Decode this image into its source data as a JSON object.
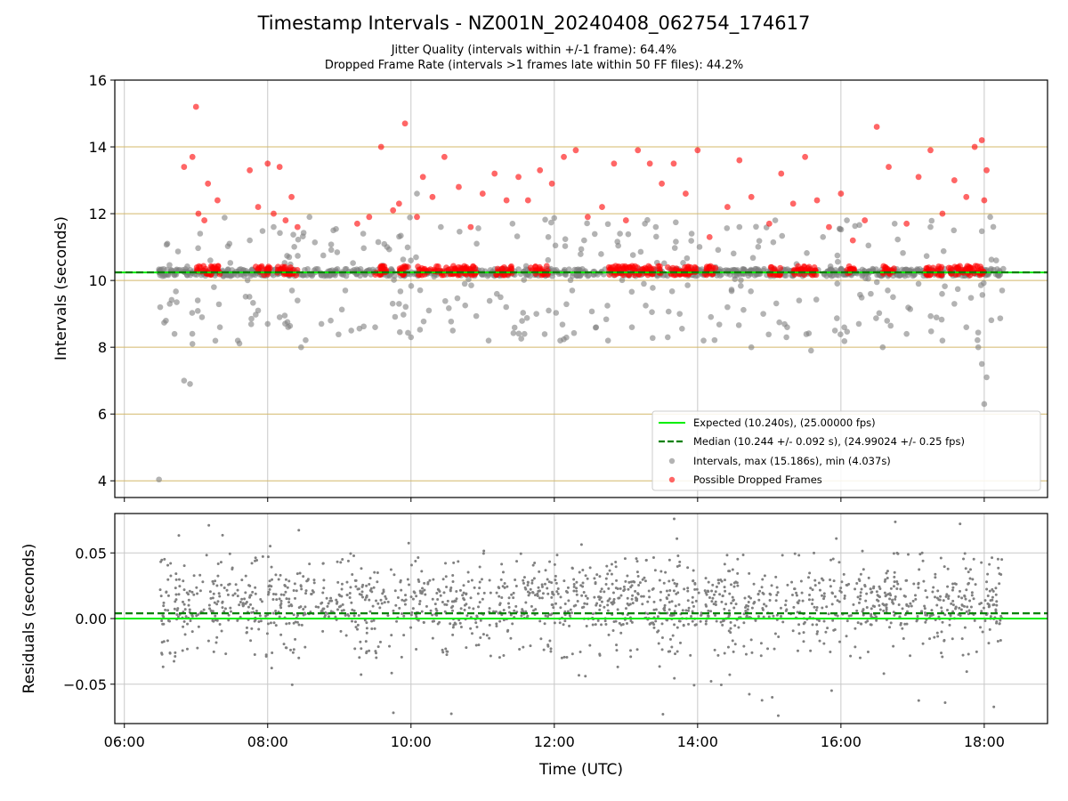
{
  "title": "Timestamp Intervals - NZ001N_20240408_062754_174617",
  "subtitle_1": "Jitter Quality (intervals within +/-1 frame): 64.4%",
  "subtitle_2": "Dropped Frame Rate (intervals >1 frames late within 50 FF files): 44.2%",
  "colors": {
    "expected": "#00ee00",
    "median": "#008000",
    "intervals": "#808080",
    "dropped": "#ff0000",
    "hgrid_top": "#d4b86a",
    "grid": "#c8c8c8"
  },
  "chart_data": [
    {
      "type": "scatter",
      "name": "intervals",
      "ylabel": "Intervals (seconds)",
      "ylim": [
        3.5,
        16
      ],
      "yticks": [
        4,
        6,
        8,
        10,
        12,
        14,
        16
      ],
      "xlim": [
        "05:52",
        "18:53"
      ],
      "xticks": [
        "06:00",
        "08:00",
        "10:00",
        "12:00",
        "14:00",
        "16:00",
        "18:00"
      ],
      "grid": true,
      "legend_position": "lower-right",
      "expected_value": 10.24,
      "median_value": 10.244,
      "legend": [
        "Expected (10.240s), (25.00000 fps)",
        "Median (10.244 +/- 0.092 s), (24.99024 +/- 0.25 fps)",
        "Intervals, max (15.186s), min (4.037s)",
        "Possible Dropped Frames"
      ],
      "series": [
        {
          "name": "Intervals, max (15.186s), min (4.037s)",
          "points": [
            [
              "06:29",
              4.04
            ],
            [
              "06:30",
              9.2
            ],
            [
              "06:36",
              11.1
            ],
            [
              "06:38",
              9.3
            ],
            [
              "06:42",
              8.4
            ],
            [
              "06:50",
              7.0
            ],
            [
              "06:55",
              6.9
            ],
            [
              "06:57",
              8.1
            ],
            [
              "07:05",
              8.9
            ],
            [
              "07:12",
              10.6
            ],
            [
              "07:15",
              9.8
            ],
            [
              "07:20",
              8.6
            ],
            [
              "07:28",
              11.1
            ],
            [
              "07:35",
              8.2
            ],
            [
              "07:45",
              11.2
            ],
            [
              "07:52",
              9.1
            ],
            [
              "08:00",
              8.7
            ],
            [
              "08:05",
              11.6
            ],
            [
              "08:10",
              8.9
            ],
            [
              "08:18",
              10.7
            ],
            [
              "08:25",
              9.4
            ],
            [
              "08:28",
              8.0
            ],
            [
              "08:35",
              11.9
            ],
            [
              "08:45",
              8.7
            ],
            [
              "08:55",
              11.5
            ],
            [
              "09:05",
              9.7
            ],
            [
              "09:10",
              8.5
            ],
            [
              "09:20",
              11.4
            ],
            [
              "09:30",
              8.6
            ],
            [
              "09:40",
              11.0
            ],
            [
              "09:50",
              9.3
            ],
            [
              "10:00",
              8.3
            ],
            [
              "10:05",
              12.6
            ],
            [
              "10:15",
              9.1
            ],
            [
              "10:25",
              11.6
            ],
            [
              "10:35",
              8.5
            ],
            [
              "10:45",
              9.9
            ],
            [
              "10:55",
              11.1
            ],
            [
              "11:05",
              8.2
            ],
            [
              "11:15",
              9.5
            ],
            [
              "11:25",
              11.7
            ],
            [
              "11:35",
              8.4
            ],
            [
              "11:45",
              9.0
            ],
            [
              "11:55",
              11.3
            ],
            [
              "12:05",
              8.2
            ],
            [
              "12:15",
              9.7
            ],
            [
              "12:25",
              11.2
            ],
            [
              "12:35",
              8.6
            ],
            [
              "12:45",
              8.2
            ],
            [
              "12:55",
              11.4
            ],
            [
              "13:05",
              8.6
            ],
            [
              "13:15",
              9.9
            ],
            [
              "13:25",
              11.6
            ],
            [
              "13:35",
              8.3
            ],
            [
              "13:45",
              9.0
            ],
            [
              "13:55",
              11.4
            ],
            [
              "14:05",
              8.2
            ],
            [
              "14:15",
              10.4
            ],
            [
              "14:25",
              9.2
            ],
            [
              "14:35",
              11.6
            ],
            [
              "14:45",
              8.0
            ],
            [
              "14:55",
              9.0
            ],
            [
              "15:05",
              11.8
            ],
            [
              "15:15",
              8.6
            ],
            [
              "15:25",
              9.4
            ],
            [
              "15:35",
              7.9
            ],
            [
              "15:45",
              11.3
            ],
            [
              "15:55",
              8.5
            ],
            [
              "16:05",
              11.8
            ],
            [
              "16:15",
              8.7
            ],
            [
              "16:25",
              9.6
            ],
            [
              "16:35",
              8.0
            ],
            [
              "16:45",
              11.7
            ],
            [
              "16:55",
              8.4
            ],
            [
              "17:05",
              9.9
            ],
            [
              "17:15",
              11.6
            ],
            [
              "17:25",
              8.2
            ],
            [
              "17:35",
              9.3
            ],
            [
              "17:45",
              8.6
            ],
            [
              "17:55",
              8.0
            ],
            [
              "17:58",
              7.5
            ],
            [
              "18:00",
              6.3
            ],
            [
              "18:02",
              7.1
            ],
            [
              "18:05",
              11.9
            ],
            [
              "18:10",
              10.6
            ],
            [
              "18:15",
              9.7
            ]
          ]
        },
        {
          "name": "Possible Dropped Frames",
          "points": [
            [
              "06:50",
              13.4
            ],
            [
              "06:57",
              13.7
            ],
            [
              "07:00",
              15.2
            ],
            [
              "07:02",
              12.0
            ],
            [
              "07:07",
              11.8
            ],
            [
              "07:10",
              12.9
            ],
            [
              "07:18",
              12.4
            ],
            [
              "07:45",
              13.3
            ],
            [
              "07:52",
              12.2
            ],
            [
              "08:00",
              13.5
            ],
            [
              "08:05",
              12.0
            ],
            [
              "08:10",
              13.4
            ],
            [
              "08:15",
              11.8
            ],
            [
              "08:20",
              12.5
            ],
            [
              "08:25",
              11.6
            ],
            [
              "09:15",
              11.7
            ],
            [
              "09:25",
              11.9
            ],
            [
              "09:35",
              14.0
            ],
            [
              "09:45",
              12.1
            ],
            [
              "09:50",
              12.3
            ],
            [
              "09:55",
              14.7
            ],
            [
              "10:05",
              11.9
            ],
            [
              "10:10",
              13.1
            ],
            [
              "10:18",
              12.5
            ],
            [
              "10:28",
              13.7
            ],
            [
              "10:40",
              12.8
            ],
            [
              "10:50",
              11.6
            ],
            [
              "11:00",
              12.6
            ],
            [
              "11:10",
              13.2
            ],
            [
              "11:20",
              12.4
            ],
            [
              "11:30",
              13.1
            ],
            [
              "11:38",
              12.4
            ],
            [
              "11:48",
              13.3
            ],
            [
              "11:58",
              12.9
            ],
            [
              "12:08",
              13.7
            ],
            [
              "12:18",
              13.9
            ],
            [
              "12:28",
              11.9
            ],
            [
              "12:40",
              12.2
            ],
            [
              "12:50",
              13.5
            ],
            [
              "13:00",
              11.8
            ],
            [
              "13:10",
              13.9
            ],
            [
              "13:20",
              13.5
            ],
            [
              "13:30",
              12.9
            ],
            [
              "13:40",
              13.5
            ],
            [
              "13:50",
              12.6
            ],
            [
              "14:00",
              13.9
            ],
            [
              "14:10",
              11.3
            ],
            [
              "14:25",
              12.2
            ],
            [
              "14:35",
              13.6
            ],
            [
              "14:45",
              12.5
            ],
            [
              "15:00",
              11.7
            ],
            [
              "15:10",
              13.2
            ],
            [
              "15:20",
              12.3
            ],
            [
              "15:30",
              13.7
            ],
            [
              "15:40",
              12.4
            ],
            [
              "15:50",
              11.6
            ],
            [
              "16:00",
              12.6
            ],
            [
              "16:10",
              11.2
            ],
            [
              "16:20",
              11.8
            ],
            [
              "16:30",
              14.6
            ],
            [
              "16:40",
              13.4
            ],
            [
              "16:55",
              11.7
            ],
            [
              "17:05",
              13.1
            ],
            [
              "17:15",
              13.9
            ],
            [
              "17:25",
              12.0
            ],
            [
              "17:35",
              13.0
            ],
            [
              "17:45",
              12.5
            ],
            [
              "17:52",
              14.0
            ],
            [
              "17:58",
              14.2
            ],
            [
              "18:00",
              12.4
            ],
            [
              "18:02",
              13.3
            ]
          ]
        }
      ]
    },
    {
      "type": "scatter",
      "name": "residuals",
      "ylabel": "Residuals (seconds)",
      "xlabel": "Time (UTC)",
      "ylim": [
        -0.08,
        0.08
      ],
      "yticks": [
        0.05,
        0.0,
        -0.05
      ],
      "ytick_labels": [
        "0.05",
        "0.00",
        "−0.05"
      ],
      "xlim": [
        "05:52",
        "18:53"
      ],
      "xticks": [
        "06:00",
        "08:00",
        "10:00",
        "12:00",
        "14:00",
        "16:00",
        "18:00"
      ],
      "grid": true,
      "expected_value": 0.0,
      "median_value": 0.004,
      "point_spread": {
        "time_range": [
          "06:30",
          "18:15"
        ],
        "band": [
          -0.03,
          0.05
        ],
        "core": [
          -0.005,
          0.03
        ]
      }
    }
  ]
}
